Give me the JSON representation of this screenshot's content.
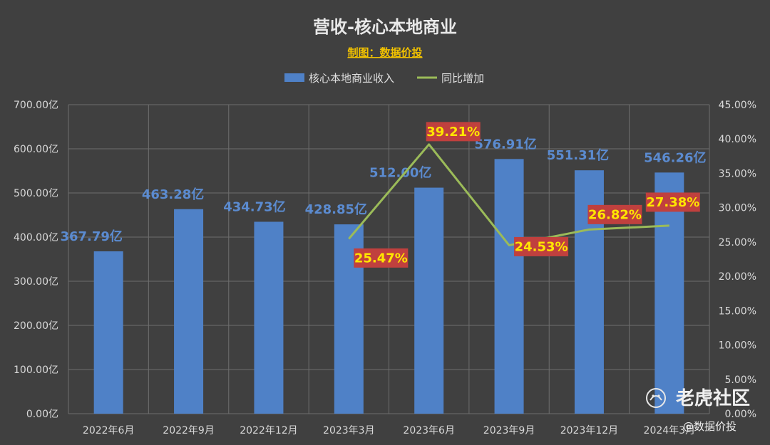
{
  "chart_data": {
    "type": "bar",
    "title": "营收-核心本地商业",
    "subtitle": "制图：数据价投",
    "categories": [
      "2022年6月",
      "2022年9月",
      "2022年12月",
      "2023年3月",
      "2023年6月",
      "2023年9月",
      "2023年12月",
      "2024年3月"
    ],
    "series": [
      {
        "name": "核心本地商业收入",
        "type": "bar",
        "axis": "left",
        "color": "#4f81c7",
        "values": [
          367.79,
          463.28,
          434.73,
          428.85,
          512.0,
          576.91,
          551.31,
          546.26
        ],
        "labels": [
          "367.79亿",
          "463.28亿",
          "434.73亿",
          "428.85亿",
          "512.00亿",
          "576.91亿",
          "551.31亿",
          "546.26亿"
        ]
      },
      {
        "name": "同比增加",
        "type": "line",
        "axis": "right",
        "color": "#9bbb59",
        "values": [
          null,
          null,
          null,
          25.47,
          39.21,
          24.53,
          26.82,
          27.38
        ],
        "labels": [
          "",
          "",
          "",
          "25.47%",
          "39.21%",
          "24.53%",
          "26.82%",
          "27.38%"
        ]
      }
    ],
    "ylim": [
      0,
      700
    ],
    "y2lim": [
      0,
      45
    ],
    "y_ticks": [
      "0.00亿",
      "100.00亿",
      "200.00亿",
      "300.00亿",
      "400.00亿",
      "500.00亿",
      "600.00亿",
      "700.00亿"
    ],
    "y2_ticks": [
      "0.00%",
      "5.00%",
      "10.00%",
      "15.00%",
      "20.00%",
      "25.00%",
      "30.00%",
      "35.00%",
      "40.00%",
      "45.00%"
    ],
    "legend_position": "top",
    "grid": true
  },
  "watermark": {
    "brand": "老虎社区",
    "handle": "@数据价投",
    "icon": "tiger-logo-icon"
  }
}
